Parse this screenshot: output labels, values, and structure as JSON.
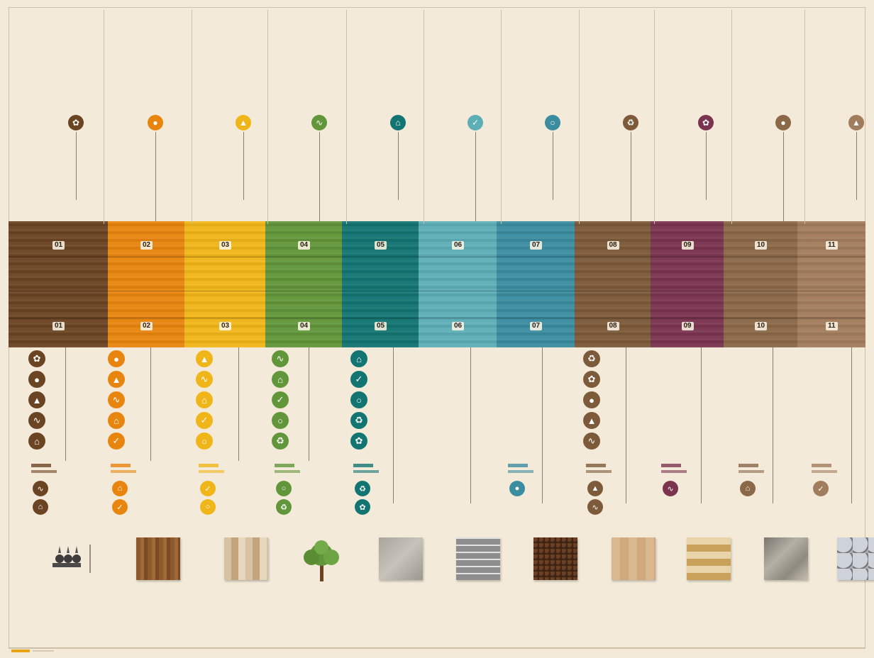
{
  "palette": [
    "#6b4423",
    "#e8850f",
    "#f0b619",
    "#62963a",
    "#137572",
    "#5eaeb6",
    "#3c8ca0",
    "#7c5a3a",
    "#7a3450",
    "#8a6848",
    "#a27d5d"
  ],
  "band_labels": [
    {
      "top": "01",
      "bottom": "01"
    },
    {
      "top": "02",
      "bottom": "02"
    },
    {
      "top": "03",
      "bottom": "03"
    },
    {
      "top": "04",
      "bottom": "04"
    },
    {
      "top": "05",
      "bottom": "05"
    },
    {
      "top": "06",
      "bottom": "06"
    },
    {
      "top": "07",
      "bottom": "07"
    },
    {
      "top": "08",
      "bottom": "08"
    },
    {
      "top": "09",
      "bottom": "09"
    },
    {
      "top": "10",
      "bottom": "10"
    },
    {
      "top": "11",
      "bottom": "11"
    }
  ],
  "icon_names": [
    "leaf-icon",
    "drop-icon",
    "triangle-icon",
    "wave-icon",
    "truck-icon",
    "check-icon",
    "circle-icon",
    "recycle-icon"
  ],
  "swatches": [
    "tools-icon",
    "oak-plank",
    "light-wood",
    "tree-icon",
    "concrete",
    "tile-grid",
    "gravel",
    "maple-plank",
    "mosaic",
    "slate",
    "stone"
  ]
}
